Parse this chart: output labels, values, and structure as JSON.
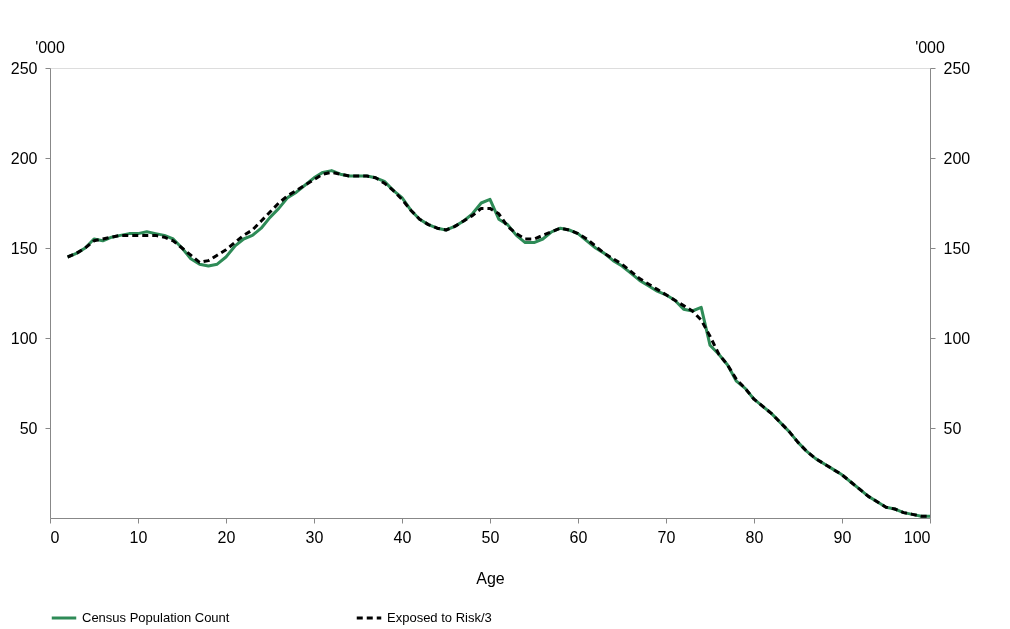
{
  "chart_data": {
    "type": "line",
    "xlabel": "Age",
    "ylabel": "'000",
    "y2label": "'000",
    "x": [
      2,
      3,
      4,
      5,
      6,
      7,
      8,
      9,
      10,
      11,
      12,
      13,
      14,
      15,
      16,
      17,
      18,
      19,
      20,
      21,
      22,
      23,
      24,
      25,
      26,
      27,
      28,
      29,
      30,
      31,
      32,
      33,
      34,
      35,
      36,
      37,
      38,
      39,
      40,
      41,
      42,
      43,
      44,
      45,
      46,
      47,
      48,
      49,
      50,
      51,
      52,
      53,
      54,
      55,
      56,
      57,
      58,
      59,
      60,
      61,
      62,
      63,
      64,
      65,
      66,
      67,
      68,
      69,
      70,
      71,
      72,
      73,
      74,
      75,
      76,
      77,
      78,
      79,
      80,
      81,
      82,
      83,
      84,
      85,
      86,
      87,
      88,
      89,
      90,
      91,
      92,
      93,
      94,
      95,
      96,
      97,
      98,
      99,
      100
    ],
    "series": [
      {
        "name": "Census Population Count",
        "color": "#2e8b57",
        "line_style": "solid",
        "values": [
          145,
          147,
          150,
          155,
          154,
          156,
          157,
          158,
          158,
          159,
          158,
          157,
          155,
          150,
          144,
          141,
          140,
          141,
          145,
          151,
          155,
          157,
          161,
          167,
          172,
          178,
          181,
          185,
          189,
          192,
          193,
          191,
          190,
          190,
          190,
          189,
          187,
          182,
          178,
          171,
          166,
          163,
          161,
          160,
          162,
          165,
          169,
          175,
          177,
          166,
          163,
          157,
          153,
          153,
          155,
          159,
          161,
          160,
          158,
          154,
          150,
          147,
          143,
          140,
          136,
          132,
          129,
          126,
          124,
          121,
          116,
          115,
          117,
          96,
          91,
          85,
          76,
          72,
          66,
          62,
          58,
          53,
          48,
          42,
          37,
          33,
          30,
          27,
          24,
          20,
          16,
          12,
          9,
          6,
          5,
          3,
          2,
          1,
          1
        ]
      },
      {
        "name": "Exposed to Risk/3",
        "color": "#000000",
        "line_style": "dashed",
        "values": [
          145,
          147,
          150,
          154,
          155,
          156,
          157,
          157,
          157,
          157,
          157,
          156,
          154,
          150,
          146,
          142,
          143,
          146,
          149,
          153,
          157,
          160,
          165,
          170,
          175,
          179,
          182,
          185,
          188,
          191,
          192,
          191,
          190,
          190,
          190,
          189,
          186,
          182,
          177,
          171,
          166,
          163,
          161,
          160,
          162,
          165,
          168,
          172,
          172,
          169,
          162,
          158,
          155,
          155,
          157,
          159,
          161,
          160,
          158,
          155,
          151,
          147,
          144,
          141,
          137,
          133,
          130,
          127,
          124,
          121,
          118,
          115,
          110,
          101,
          91,
          85,
          77,
          72,
          66,
          62,
          58,
          53,
          48,
          42,
          37,
          33,
          30,
          27,
          24,
          20,
          16,
          12,
          9,
          6,
          5,
          3,
          2,
          1,
          1
        ]
      }
    ],
    "xlim": [
      0,
      100
    ],
    "xticks": [
      0,
      10,
      20,
      30,
      40,
      50,
      60,
      70,
      80,
      90,
      100
    ],
    "ylim": [
      0,
      250
    ],
    "yticks": [
      50,
      100,
      150,
      200,
      250
    ],
    "y2lim": [
      0,
      250
    ],
    "y2ticks": [
      50,
      100,
      150,
      200,
      250
    ],
    "grid": false,
    "legend": "bottom"
  }
}
